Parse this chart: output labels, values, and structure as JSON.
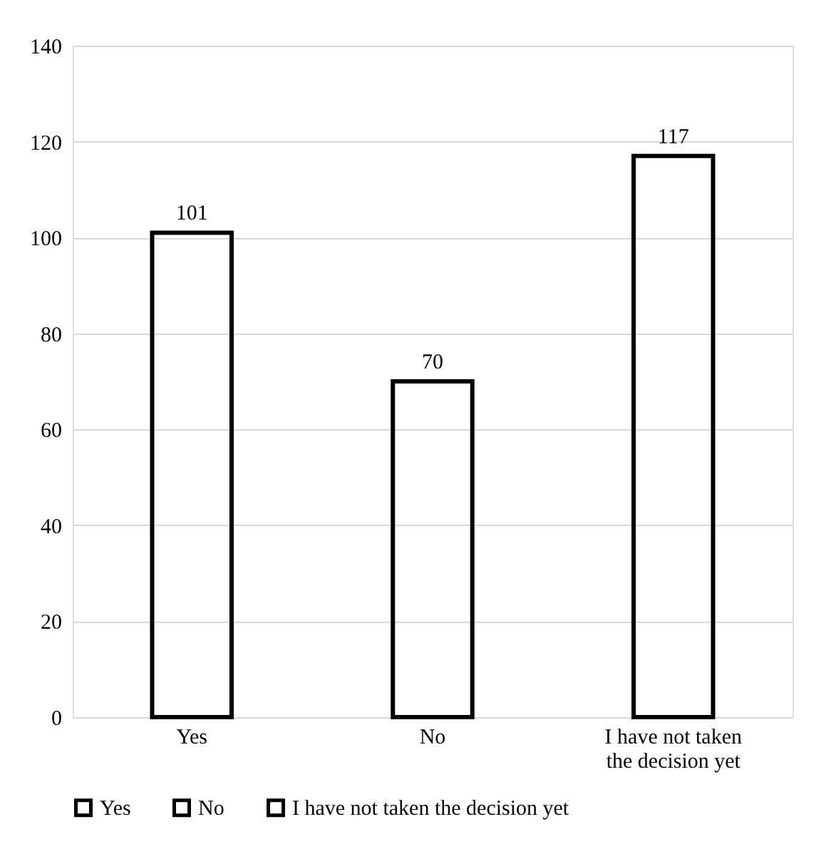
{
  "chart_data": {
    "type": "bar",
    "categories": [
      "Yes",
      "No",
      "I have not taken the decision yet"
    ],
    "series": [
      {
        "name": "Yes",
        "color": "#000000",
        "values": [
          101,
          null,
          null
        ]
      },
      {
        "name": "No",
        "color": "#000000",
        "values": [
          null,
          70,
          null
        ]
      },
      {
        "name": "I have not taken the decision yet",
        "color": "#000000",
        "values": [
          null,
          null,
          117
        ]
      }
    ],
    "ylim": [
      0,
      140
    ],
    "yticks": [
      0,
      20,
      40,
      60,
      80,
      100,
      120,
      140
    ],
    "grid": "y",
    "legend": "bottom",
    "data_labels": true
  }
}
